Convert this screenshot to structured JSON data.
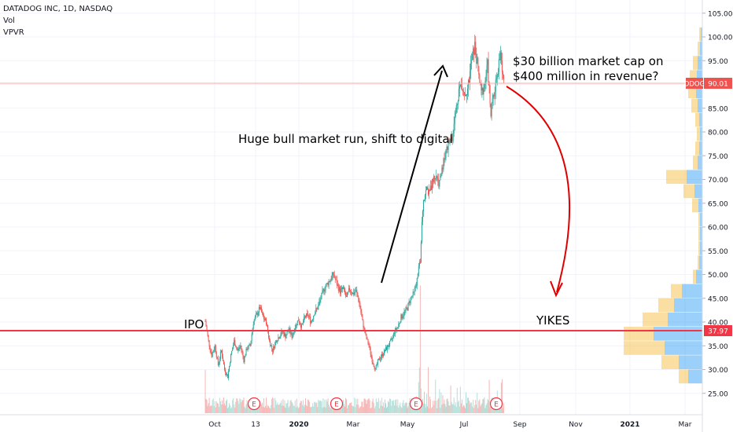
{
  "header": {
    "symbol_line": "DATADOG INC, 1D, NASDAQ",
    "indicator_vol": "Vol",
    "indicator_vpvr": "VPVR"
  },
  "chart_data": {
    "type": "candlestick",
    "y_axis": {
      "ticks": [
        "105.00",
        "100.00",
        "95.00",
        "90.00",
        "85.00",
        "80.00",
        "75.00",
        "70.00",
        "65.00",
        "60.00",
        "55.00",
        "50.00",
        "45.00",
        "40.00",
        "35.00",
        "30.00",
        "25.00"
      ],
      "range": [
        22,
        108
      ]
    },
    "x_axis": {
      "ticks": [
        "Oct",
        "13",
        "2020",
        "Mar",
        "May",
        "Jul",
        "Sep",
        "Nov",
        "2021",
        "Mar"
      ]
    },
    "price_badges": [
      {
        "label": "DDOG",
        "value": "90.01",
        "color": "#ef5350"
      },
      {
        "value": "37.97",
        "color": "#f23645"
      }
    ],
    "annotations": {
      "ipo": "IPO",
      "bull": "Huge bull market run, shift to digital",
      "cap_line1": "$30 billion market cap on",
      "cap_line2": "$400 million in revenue?",
      "yikes": "YIKES"
    },
    "earnings_marker": "E",
    "colors": {
      "up": "#26a69a",
      "down": "#ef5350",
      "hline": "#f23645",
      "vp_up": "#2196f3",
      "vp_down": "#f7b731"
    },
    "price_path": [
      [
        0,
        40.2
      ],
      [
        4,
        36
      ],
      [
        8,
        33
      ],
      [
        12,
        35
      ],
      [
        16,
        31
      ],
      [
        20,
        34
      ],
      [
        24,
        30
      ],
      [
        28,
        28.5
      ],
      [
        32,
        33
      ],
      [
        36,
        36
      ],
      [
        40,
        34
      ],
      [
        44,
        35
      ],
      [
        48,
        32
      ],
      [
        52,
        34.5
      ],
      [
        56,
        35
      ],
      [
        60,
        40
      ],
      [
        64,
        41.5
      ],
      [
        68,
        43
      ],
      [
        72,
        41
      ],
      [
        76,
        40
      ],
      [
        80,
        36
      ],
      [
        84,
        34
      ],
      [
        88,
        36
      ],
      [
        92,
        37
      ],
      [
        96,
        38
      ],
      [
        100,
        37
      ],
      [
        104,
        38.5
      ],
      [
        108,
        37
      ],
      [
        112,
        39
      ],
      [
        116,
        40.5
      ],
      [
        120,
        39
      ],
      [
        124,
        41
      ],
      [
        128,
        41.5
      ],
      [
        132,
        40
      ],
      [
        136,
        42
      ],
      [
        140,
        43
      ],
      [
        144,
        45
      ],
      [
        148,
        47
      ],
      [
        152,
        48
      ],
      [
        156,
        49
      ],
      [
        160,
        50
      ],
      [
        164,
        48
      ],
      [
        168,
        46.5
      ],
      [
        172,
        47
      ],
      [
        176,
        45
      ],
      [
        180,
        47
      ],
      [
        184,
        46
      ],
      [
        188,
        46.5
      ],
      [
        192,
        44
      ],
      [
        196,
        40
      ],
      [
        200,
        37
      ],
      [
        204,
        35
      ],
      [
        208,
        32
      ],
      [
        212,
        30
      ],
      [
        216,
        32
      ],
      [
        220,
        33
      ],
      [
        224,
        34
      ],
      [
        228,
        35
      ],
      [
        232,
        36
      ],
      [
        236,
        38
      ],
      [
        240,
        39
      ],
      [
        244,
        41
      ],
      [
        248,
        42
      ],
      [
        252,
        43
      ],
      [
        256,
        45
      ],
      [
        260,
        46
      ],
      [
        264,
        49
      ],
      [
        268,
        53
      ],
      [
        270,
        62
      ],
      [
        272,
        66
      ],
      [
        276,
        68
      ],
      [
        280,
        67
      ],
      [
        284,
        70
      ],
      [
        288,
        71
      ],
      [
        292,
        69
      ],
      [
        296,
        73
      ],
      [
        300,
        76
      ],
      [
        304,
        78
      ],
      [
        308,
        79
      ],
      [
        312,
        84
      ],
      [
        316,
        89
      ],
      [
        320,
        90
      ],
      [
        324,
        88
      ],
      [
        328,
        90
      ],
      [
        332,
        95
      ],
      [
        336,
        98
      ],
      [
        340,
        93
      ],
      [
        344,
        88
      ],
      [
        348,
        90
      ],
      [
        352,
        94
      ],
      [
        356,
        84
      ],
      [
        360,
        88
      ],
      [
        364,
        93
      ],
      [
        368,
        96
      ],
      [
        372,
        90
      ]
    ],
    "volume_profile": [
      {
        "price": 28.5,
        "up": 18,
        "down": 12
      },
      {
        "price": 31.5,
        "up": 30,
        "down": 22
      },
      {
        "price": 34.5,
        "up": 48,
        "down": 52
      },
      {
        "price": 37.5,
        "up": 62,
        "down": 38
      },
      {
        "price": 40.5,
        "up": 44,
        "down": 32
      },
      {
        "price": 43.5,
        "up": 36,
        "down": 20
      },
      {
        "price": 46.5,
        "up": 26,
        "down": 14
      },
      {
        "price": 49.5,
        "up": 8,
        "down": 4
      },
      {
        "price": 52.5,
        "up": 4,
        "down": 2
      },
      {
        "price": 55.5,
        "up": 3,
        "down": 2
      },
      {
        "price": 58.5,
        "up": 3,
        "down": 2
      },
      {
        "price": 61.5,
        "up": 3,
        "down": 2
      },
      {
        "price": 64.5,
        "up": 5,
        "down": 8
      },
      {
        "price": 67.5,
        "up": 10,
        "down": 14
      },
      {
        "price": 70.5,
        "up": 20,
        "down": 26
      },
      {
        "price": 73.5,
        "up": 6,
        "down": 6
      },
      {
        "price": 76.5,
        "up": 4,
        "down": 5
      },
      {
        "price": 79.5,
        "up": 3,
        "down": 4
      },
      {
        "price": 82.5,
        "up": 4,
        "down": 5
      },
      {
        "price": 85.5,
        "up": 6,
        "down": 8
      },
      {
        "price": 88.5,
        "up": 8,
        "down": 10
      },
      {
        "price": 91.5,
        "up": 7,
        "down": 9
      },
      {
        "price": 94.5,
        "up": 6,
        "down": 6
      },
      {
        "price": 97.5,
        "up": 3,
        "down": 3
      },
      {
        "price": 100.5,
        "up": 2,
        "down": 2
      }
    ]
  }
}
